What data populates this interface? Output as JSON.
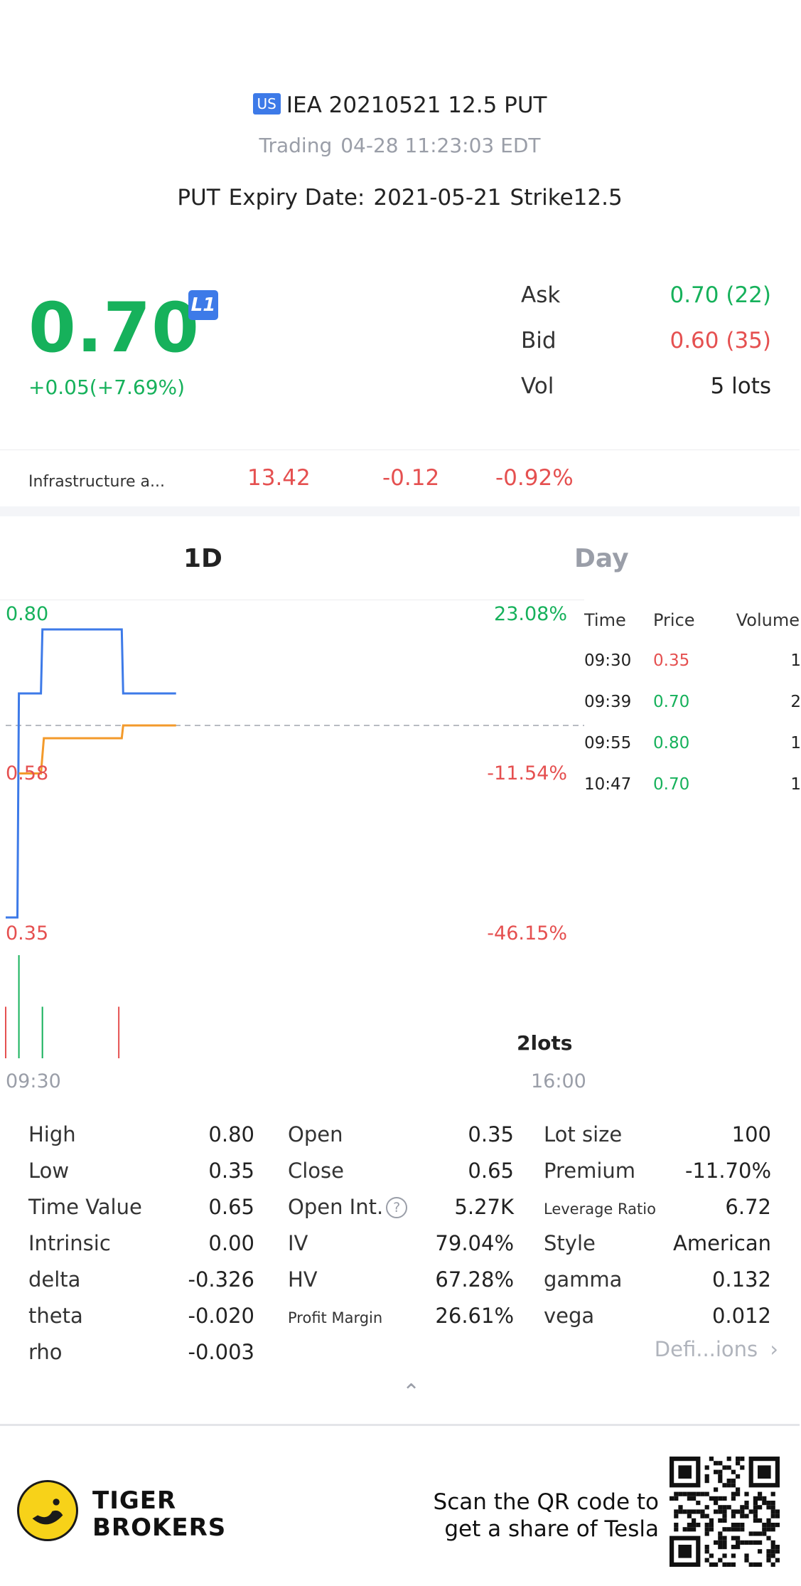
{
  "header": {
    "market_badge": "US",
    "title": "IEA 20210521 12.5 PUT",
    "status": "Trading",
    "timestamp": "04-28 11:23:03 EDT",
    "option_type": "PUT",
    "expiry_label": "Expiry Date:",
    "expiry_date": "2021-05-21",
    "strike": "Strike12.5"
  },
  "quote": {
    "last_price": "0.70",
    "level_badge": "L1",
    "change": "+0.05(+7.69%)",
    "ask_label": "Ask",
    "ask_value": "0.70 (22)",
    "bid_label": "Bid",
    "bid_value": "0.60 (35)",
    "vol_label": "Vol",
    "vol_value": "5 lots"
  },
  "underlying": {
    "name": "Infrastructure a...",
    "price": "13.42",
    "change": "-0.12",
    "change_pct": "-0.92%"
  },
  "tabs": {
    "intraday": "1D",
    "daily": "Day"
  },
  "colors": {
    "up": "#16b15b",
    "down": "#e55050",
    "accent": "#3d7ae8",
    "avg_line": "#f39a2b",
    "muted": "#9a9ea8"
  },
  "chart_data": {
    "type": "line",
    "y_axis_left": [
      "0.80",
      "0.58",
      "0.35"
    ],
    "y_axis_right": [
      "23.08%",
      "-11.54%",
      "-46.15%"
    ],
    "x_axis": [
      "09:30",
      "16:00"
    ],
    "ylim": [
      0.35,
      0.8
    ],
    "prev_close": 0.65,
    "volume_max_label": "2lots",
    "session_minutes": 390,
    "series": [
      {
        "color": "#3d7ae8",
        "points": [
          [
            0,
            0.35
          ],
          [
            8,
            0.35
          ],
          [
            9,
            0.7
          ],
          [
            24,
            0.7
          ],
          [
            25,
            0.8
          ],
          [
            79,
            0.8
          ],
          [
            80,
            0.7
          ],
          [
            116,
            0.7
          ]
        ]
      },
      {
        "color": "#f39a2b",
        "points": [
          [
            9,
            0.575
          ],
          [
            24,
            0.575
          ],
          [
            26,
            0.63
          ],
          [
            79,
            0.63
          ],
          [
            80,
            0.65
          ],
          [
            116,
            0.65
          ]
        ]
      }
    ],
    "volume": [
      {
        "t": 0,
        "v": 1,
        "color": "#e55050"
      },
      {
        "t": 9,
        "v": 2,
        "color": "#16b15b"
      },
      {
        "t": 25,
        "v": 1,
        "color": "#16b15b"
      },
      {
        "t": 77,
        "v": 1,
        "color": "#e55050"
      }
    ]
  },
  "time_sales": {
    "headers": [
      "Time",
      "Price",
      "Volume"
    ],
    "rows": [
      {
        "time": "09:30",
        "price": "0.35",
        "volume": "1",
        "color": "#e55050"
      },
      {
        "time": "09:39",
        "price": "0.70",
        "volume": "2",
        "color": "#16b15b"
      },
      {
        "time": "09:55",
        "price": "0.80",
        "volume": "1",
        "color": "#16b15b"
      },
      {
        "time": "10:47",
        "price": "0.70",
        "volume": "1",
        "color": "#16b15b"
      }
    ]
  },
  "stats": [
    [
      {
        "label": "High",
        "value": "0.80"
      },
      {
        "label": "Low",
        "value": "0.35"
      },
      {
        "label": "Time Value",
        "value": "0.65"
      },
      {
        "label": "Intrinsic",
        "value": "0.00"
      },
      {
        "label": "delta",
        "value": "-0.326"
      },
      {
        "label": "theta",
        "value": "-0.020"
      },
      {
        "label": "rho",
        "value": "-0.003"
      }
    ],
    [
      {
        "label": "Open",
        "value": "0.35"
      },
      {
        "label": "Close",
        "value": "0.65"
      },
      {
        "label": "Open Int.",
        "value": "5.27K",
        "help": "?"
      },
      {
        "label": "IV",
        "value": "79.04%"
      },
      {
        "label": "HV",
        "value": "67.28%"
      },
      {
        "label": "Profit Margin",
        "value": "26.61%",
        "small": true
      }
    ],
    [
      {
        "label": "Lot size",
        "value": "100"
      },
      {
        "label": "Premium",
        "value": "-11.70%"
      },
      {
        "label": "Leverage Ratio",
        "value": "6.72",
        "small": true
      },
      {
        "label": "Style",
        "value": "American"
      },
      {
        "label": "gamma",
        "value": "0.132"
      },
      {
        "label": "vega",
        "value": "0.012"
      }
    ]
  ],
  "definitions_link": "Defi...ions",
  "footer": {
    "brand_line1": "TIGER",
    "brand_line2": "BROKERS",
    "promo_line1": "Scan the QR code to",
    "promo_line2": "get a share of Tesla"
  }
}
